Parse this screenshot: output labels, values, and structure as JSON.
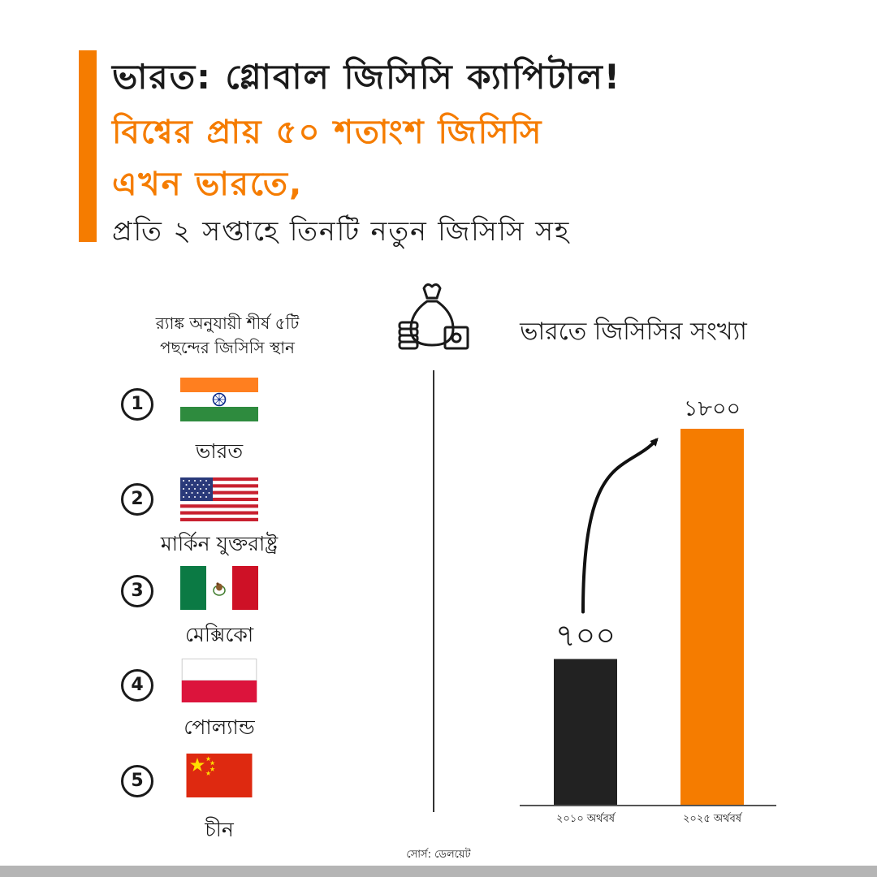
{
  "header": {
    "line1": "ভারত: গ্লোবাল জিসিসি ক্যাপিটাল!",
    "line2": "বিশ্বের প্রায় ৫০ শতাংশ জিসিসি",
    "line3": "এখন ভারতে,",
    "line4": "প্রতি ২ সপ্তাহে তিনটি নতুন জিসিসি সহ",
    "accent_color": "#f57c00"
  },
  "ranking": {
    "title_line1": "র‌্যাঙ্ক অনুযায়ী শীর্ষ ৫টি",
    "title_line2": "পছন্দের জিসিসি স্থান",
    "items": [
      {
        "rank": "1",
        "country": "ভারত",
        "flag": "india-flag"
      },
      {
        "rank": "2",
        "country": "মার্কিন যুক্তরাষ্ট্র",
        "flag": "usa-flag"
      },
      {
        "rank": "3",
        "country": "মেক্সিকো",
        "flag": "mexico-flag"
      },
      {
        "rank": "4",
        "country": "পোল্যান্ড",
        "flag": "poland-flag"
      },
      {
        "rank": "5",
        "country": "চীন",
        "flag": "china-flag"
      }
    ]
  },
  "icon": "money-bag-icon",
  "chart_data": {
    "type": "bar",
    "title": "ভারতে জিসিসির সংখ্যা",
    "categories": [
      "২০১০ অর্থবর্ষ",
      "২০২৫ অর্থবর্ষ"
    ],
    "values": [
      700,
      1800
    ],
    "data_labels": [
      "৭০০",
      "১৮০০"
    ],
    "colors": [
      "#222222",
      "#f57c00"
    ],
    "ylim": [
      0,
      1800
    ],
    "grid": false,
    "annotation": "growth-arrow"
  },
  "source": "সোর্স: ডেলয়েট"
}
